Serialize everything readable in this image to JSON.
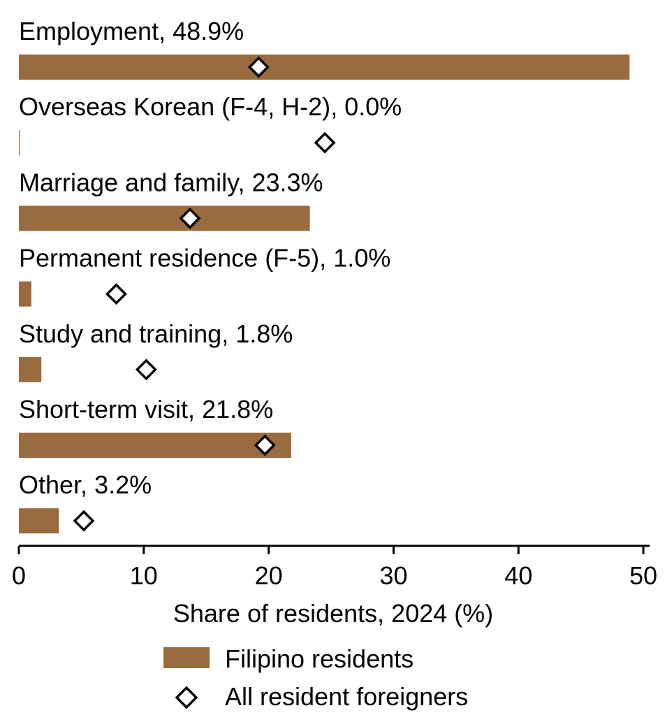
{
  "chart_data": {
    "type": "bar",
    "orientation": "horizontal",
    "categories": [
      "Employment",
      "Overseas Korean (F-4, H-2)",
      "Marriage and family",
      "Permanent residence (F-5)",
      "Study and training",
      "Short-term visit",
      "Other"
    ],
    "category_labels": [
      "Employment, 48.9%",
      "Overseas Korean (F-4, H-2), 0.0%",
      "Marriage and family, 23.3%",
      "Permanent residence (F-5), 1.0%",
      "Study and training, 1.8%",
      "Short-term visit, 21.8%",
      "Other, 3.2%"
    ],
    "series": [
      {
        "name": "Filipino residents",
        "mark": "bar",
        "color": "#9A6B3F",
        "values": [
          48.9,
          0.0,
          23.3,
          1.0,
          1.8,
          21.8,
          3.2
        ]
      },
      {
        "name": "All resident foreigners",
        "mark": "diamond",
        "color": "#000000",
        "values": [
          19.2,
          24.5,
          13.7,
          7.8,
          10.2,
          19.7,
          5.2
        ]
      }
    ],
    "xlabel": "Share of residents, 2024 (%)",
    "xlim": [
      0,
      50
    ],
    "xticks": [
      "0",
      "10",
      "20",
      "30",
      "40",
      "50"
    ],
    "grid": false,
    "legend_position": "bottom-center"
  }
}
